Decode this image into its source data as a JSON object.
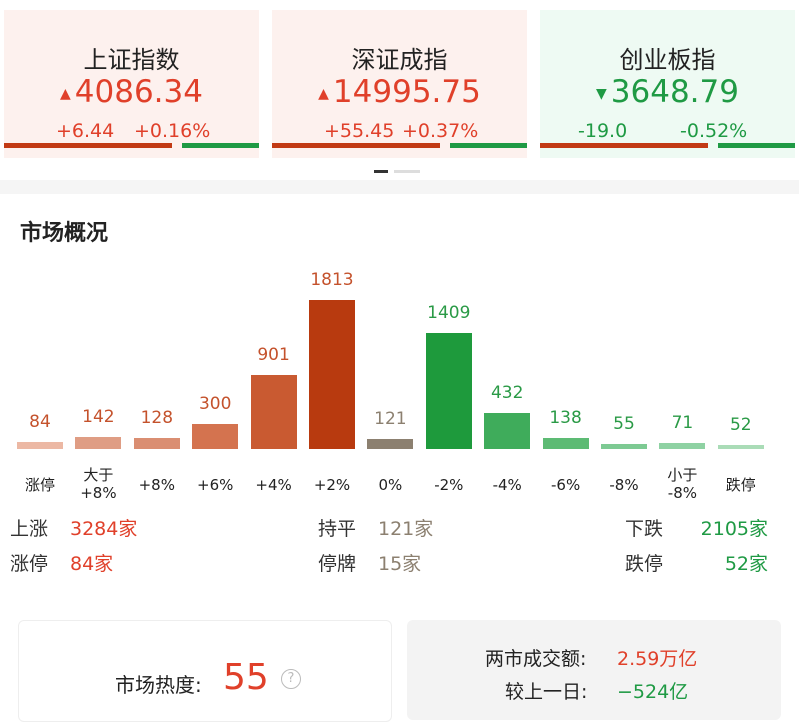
{
  "indices": [
    {
      "name": "上证指数",
      "value": "4086.34",
      "change": "+6.44",
      "pct": "+0.16%",
      "direction": "up"
    },
    {
      "name": "深证成指",
      "value": "14995.75",
      "change": "+55.45",
      "pct": "+0.37%",
      "direction": "up"
    },
    {
      "name": "创业板指",
      "value": "3648.79",
      "change": "-19.0",
      "pct": "-0.52%",
      "direction": "down"
    }
  ],
  "overview": {
    "title": "市场概况",
    "chart": {
      "type": "bar",
      "categories": [
        "涨停",
        "大于 +8%",
        "+8%",
        "+6%",
        "+4%",
        "+2%",
        "0%",
        "-2%",
        "-4%",
        "-6%",
        "-8%",
        "小于 -8%",
        "跌停"
      ],
      "values": [
        84,
        142,
        128,
        300,
        901,
        1813,
        121,
        1409,
        432,
        138,
        55,
        71,
        52
      ],
      "colors": [
        "#ecb8a4",
        "#df9d84",
        "#da8e72",
        "#d4734f",
        "#c95a31",
        "#b83a0f",
        "#8c8070",
        "#1e9a3c",
        "#3fac5b",
        "#5dbb74",
        "#7dca93",
        "#8fd2a3",
        "#aadcb7"
      ],
      "label_colors": [
        "#c4522c",
        "#c4522c",
        "#c4522c",
        "#c4522c",
        "#c4522c",
        "#c4522c",
        "#8c8070",
        "#2a9a46",
        "#2a9a46",
        "#2a9a46",
        "#2a9a46",
        "#2a9a46",
        "#2a9a46"
      ]
    },
    "stats": [
      [
        {
          "label": "上涨",
          "value": "3284家"
        },
        {
          "label": "持平",
          "value": "121家"
        },
        {
          "label": "下跌",
          "value": "2105家"
        }
      ],
      [
        {
          "label": "涨停",
          "value": "84家"
        },
        {
          "label": "停牌",
          "value": "15家"
        },
        {
          "label": "跌停",
          "value": "52家"
        }
      ]
    ]
  },
  "heat": {
    "label": "市场热度:",
    "value": "55"
  },
  "turnover": {
    "label": "两市成交额:",
    "value": "2.59万亿",
    "compare_label": "较上一日:",
    "compare_value": "−524亿"
  }
}
